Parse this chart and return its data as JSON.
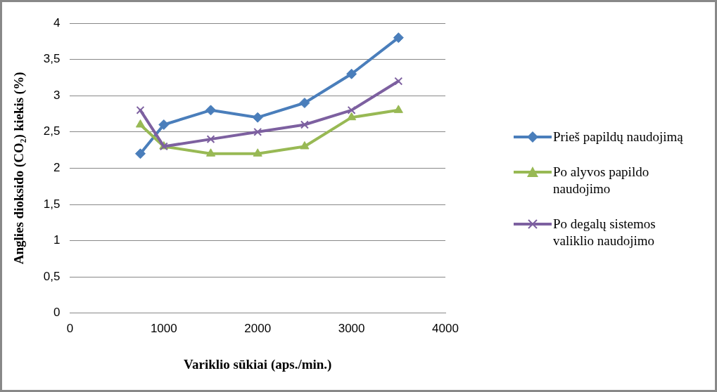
{
  "chart_data": {
    "type": "line",
    "xlabel": "Variklio sūkiai (aps./min.)",
    "ylabel": "Anglies dioksido (CO₂) kiekis (%)",
    "x": [
      750,
      1000,
      1500,
      2000,
      2500,
      3000,
      3500
    ],
    "series": [
      {
        "name": "Prieš papildų naudojimą",
        "color": "#4a7ebb",
        "marker": "diamond",
        "values": [
          2.2,
          2.6,
          2.8,
          2.7,
          2.9,
          3.3,
          3.8
        ]
      },
      {
        "name": "Po alyvos papildo naudojimo",
        "color": "#98b954",
        "marker": "triangle",
        "values": [
          2.6,
          2.3,
          2.2,
          2.2,
          2.3,
          2.7,
          2.8
        ]
      },
      {
        "name": "Po degalų sistemos valiklio naudojimo",
        "color": "#7d60a0",
        "marker": "cross",
        "values": [
          2.8,
          2.3,
          2.4,
          2.5,
          2.6,
          2.8,
          3.2
        ]
      }
    ],
    "xlim": [
      0,
      4000
    ],
    "xticks": [
      {
        "value": 0,
        "label": "0"
      },
      {
        "value": 1000,
        "label": "1000"
      },
      {
        "value": 2000,
        "label": "2000"
      },
      {
        "value": 3000,
        "label": "3000"
      },
      {
        "value": 4000,
        "label": "4000"
      }
    ],
    "ylim": [
      0,
      4
    ],
    "yticks": [
      {
        "value": 0,
        "label": "0"
      },
      {
        "value": 0.5,
        "label": "0,5"
      },
      {
        "value": 1,
        "label": "1"
      },
      {
        "value": 1.5,
        "label": "1,5"
      },
      {
        "value": 2,
        "label": "2"
      },
      {
        "value": 2.5,
        "label": "2,5"
      },
      {
        "value": 3,
        "label": "3"
      },
      {
        "value": 3.5,
        "label": "3,5"
      },
      {
        "value": 4,
        "label": "4"
      }
    ],
    "grid": "y",
    "legend": "right",
    "line_style": "solid"
  }
}
